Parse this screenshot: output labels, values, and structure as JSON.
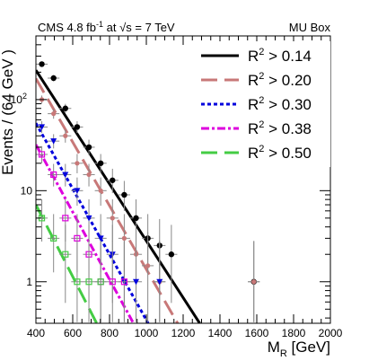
{
  "chart_data": {
    "type": "scatter",
    "header_left": "CMS  4.8 fb",
    "header_left_sup": "-1",
    "header_left_mid": " at ",
    "header_sqrt": "√s",
    "header_left_tail": " = 7 TeV",
    "header_right": "MU Box",
    "ylabel": "Events / (64 GeV )",
    "xlabel": "M",
    "xlabel_sub": "R",
    "xlabel_unit": " [GeV]",
    "xlim": [
      400,
      2000
    ],
    "ylim": [
      0.35,
      500
    ],
    "y_scale": "log",
    "x_ticks": [
      "400",
      "600",
      "800",
      "1000",
      "1200",
      "1400",
      "1600",
      "1800",
      "2000"
    ],
    "y_ticks": [
      "1",
      "10",
      "10"
    ],
    "y_tick_sup": "2",
    "legend_placement": "top-right",
    "legend_text_prefix": "R",
    "legend_text_sup": "2",
    "series": [
      {
        "name": "> 0.14",
        "color": "#000000",
        "dash": "",
        "line": [
          [
            400,
            210
          ],
          [
            1290,
            0.35
          ]
        ],
        "points": [
          [
            432,
            245
          ],
          [
            496,
            172
          ],
          [
            560,
            80
          ],
          [
            624,
            50
          ],
          [
            688,
            30
          ],
          [
            752,
            20
          ],
          [
            816,
            13
          ],
          [
            880,
            9
          ],
          [
            944,
            5
          ],
          [
            1008,
            3
          ],
          [
            1072,
            2.5
          ],
          [
            1136,
            2
          ],
          [
            1584,
            1
          ]
        ]
      },
      {
        "name": "> 0.20",
        "color": "#c87878",
        "dash": "18,8",
        "line": [
          [
            400,
            170
          ],
          [
            1170,
            0.35
          ]
        ],
        "points": [
          [
            432,
            100
          ],
          [
            496,
            70
          ],
          [
            560,
            40
          ],
          [
            624,
            20
          ],
          [
            688,
            15
          ],
          [
            752,
            10
          ],
          [
            816,
            5
          ],
          [
            880,
            3
          ],
          [
            944,
            2
          ],
          [
            1008,
            1.5
          ],
          [
            1072,
            1
          ],
          [
            1584,
            1
          ]
        ]
      },
      {
        "name": "> 0.30",
        "color": "#0000dd",
        "dash": "4,3",
        "line": [
          [
            400,
            55
          ],
          [
            1010,
            0.35
          ]
        ],
        "points": [
          [
            432,
            50
          ],
          [
            496,
            35
          ],
          [
            560,
            15
          ],
          [
            624,
            10
          ],
          [
            688,
            5
          ],
          [
            752,
            3
          ],
          [
            816,
            2
          ],
          [
            880,
            1
          ],
          [
            944,
            1
          ],
          [
            1072,
            1
          ]
        ]
      },
      {
        "name": "> 0.38",
        "color": "#dd00dd",
        "dash": "9,3,3,3",
        "line": [
          [
            400,
            32
          ],
          [
            930,
            0.35
          ]
        ],
        "points": [
          [
            432,
            25
          ],
          [
            496,
            15
          ],
          [
            560,
            5
          ],
          [
            624,
            3
          ],
          [
            688,
            2
          ],
          [
            752,
            1
          ],
          [
            816,
            1
          ],
          [
            880,
            1
          ]
        ]
      },
      {
        "name": "> 0.50",
        "color": "#44cc44",
        "dash": "18,8",
        "line": [
          [
            400,
            7
          ],
          [
            730,
            0.35
          ]
        ],
        "points": [
          [
            432,
            5
          ],
          [
            496,
            3
          ],
          [
            560,
            2
          ],
          [
            624,
            1
          ],
          [
            688,
            1
          ],
          [
            752,
            1
          ]
        ]
      }
    ]
  }
}
